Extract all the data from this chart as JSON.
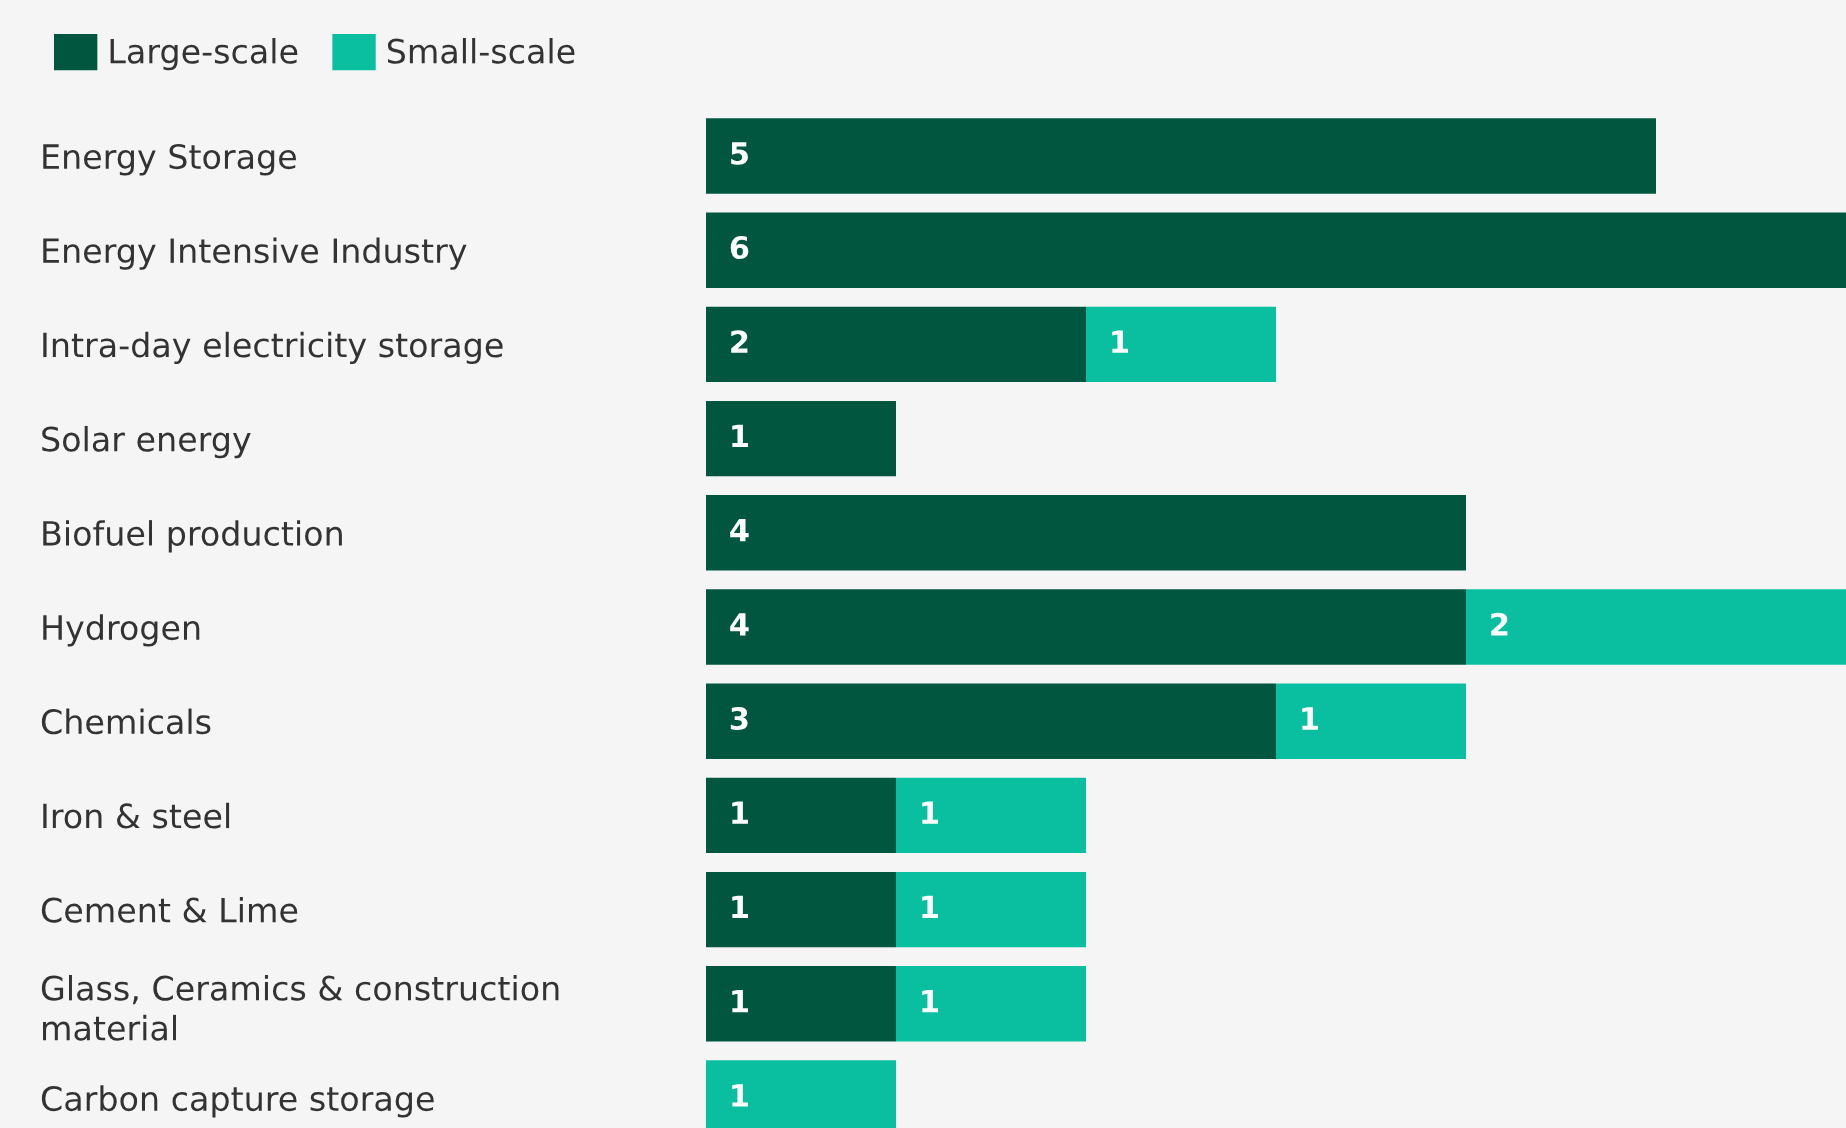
{
  "chart_data": {
    "type": "bar",
    "orientation": "horizontal",
    "stacked": true,
    "data_labels": true,
    "legend": "top left",
    "grid": false,
    "xlim": [
      0,
      6
    ],
    "categories": [
      "Energy Storage",
      "Energy Intensive Industry",
      "Intra-day electricity storage",
      "Solar energy",
      "Biofuel production",
      "Hydrogen",
      "Chemicals",
      "Iron & steel",
      "Cement & Lime",
      "Glass, Ceramics & construction\nmaterial",
      "Carbon capture storage"
    ],
    "series": [
      {
        "name": "Large-scale",
        "color": "#00563f",
        "values": [
          5,
          6,
          2,
          1,
          4,
          4,
          3,
          1,
          1,
          1,
          null
        ]
      },
      {
        "name": "Small-scale",
        "color": "#0abf9f",
        "values": [
          null,
          null,
          1,
          null,
          null,
          2,
          1,
          1,
          1,
          1,
          1
        ]
      }
    ]
  }
}
